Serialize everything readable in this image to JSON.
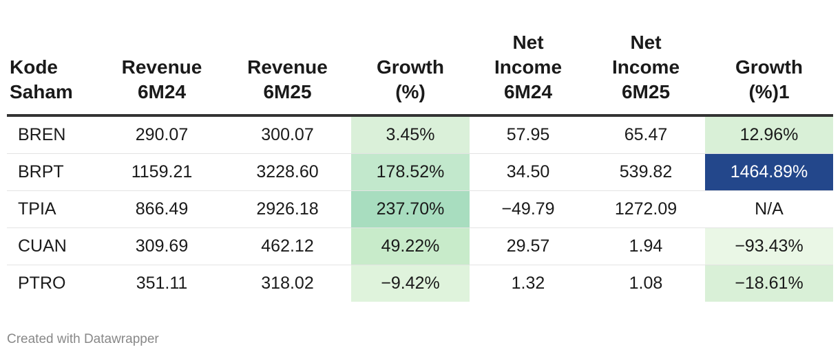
{
  "chart_data": {
    "type": "table",
    "columns": [
      [
        "Kode",
        "Saham"
      ],
      [
        "Revenue",
        "6M24"
      ],
      [
        "Revenue",
        "6M25"
      ],
      [
        "Growth",
        "(%)"
      ],
      [
        "Net",
        "Income",
        "6M24"
      ],
      [
        "Net",
        "Income",
        "6M25"
      ],
      [
        "Growth",
        "(%)1"
      ]
    ],
    "rows": [
      {
        "kode": "BREN",
        "rev24": "290.07",
        "rev25": "300.07",
        "growth": "3.45%",
        "growth_val": 3.45,
        "ni24": "57.95",
        "ni25": "65.47",
        "growth1": "12.96%",
        "growth1_val": 12.96
      },
      {
        "kode": "BRPT",
        "rev24": "1159.21",
        "rev25": "3228.60",
        "growth": "178.52%",
        "growth_val": 178.52,
        "ni24": "34.50",
        "ni25": "539.82",
        "growth1": "1464.89%",
        "growth1_val": 1464.89
      },
      {
        "kode": "TPIA",
        "rev24": "866.49",
        "rev25": "2926.18",
        "growth": "237.70%",
        "growth_val": 237.7,
        "ni24": "−49.79",
        "ni25": "1272.09",
        "growth1": "N/A",
        "growth1_val": null
      },
      {
        "kode": "CUAN",
        "rev24": "309.69",
        "rev25": "462.12",
        "growth": "49.22%",
        "growth_val": 49.22,
        "ni24": "29.57",
        "ni25": "1.94",
        "growth1": "−93.43%",
        "growth1_val": -93.43
      },
      {
        "kode": "PTRO",
        "rev24": "351.11",
        "rev25": "318.02",
        "growth": "−9.42%",
        "growth_val": -9.42,
        "ni24": "1.32",
        "ni25": "1.08",
        "growth1": "−18.61%",
        "growth1_val": -18.61
      }
    ],
    "colors": {
      "growth": [
        "#daf0d9",
        "#c2e8cc",
        "#a8ddbf",
        "#c8ebca",
        "#dff3dc"
      ],
      "growth1": [
        "#d9f0d7",
        "#23478b",
        "#ffffff",
        "#eaf7e6",
        "#d9f0d7"
      ],
      "growth1_text": [
        "#1a1a1a",
        "#ffffff",
        "#1a1a1a",
        "#1a1a1a",
        "#1a1a1a"
      ]
    }
  },
  "footer": {
    "credit": "Created with Datawrapper"
  }
}
